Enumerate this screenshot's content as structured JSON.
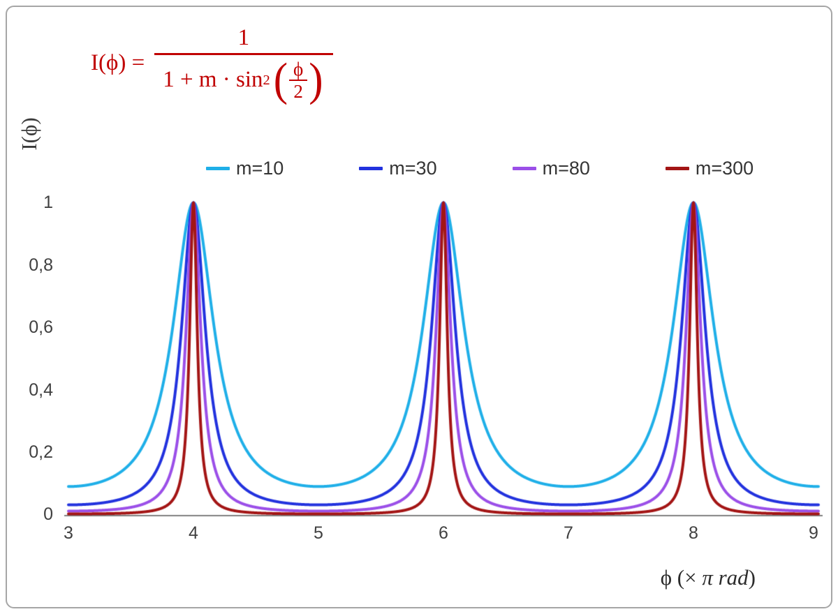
{
  "formula": {
    "plain": "I(ϕ) = 1 / (1 + m·sin²(ϕ/2))",
    "lhs": "I(ϕ) =",
    "numerator": "1",
    "den_prefix": "1 + m · sin",
    "den_sup": "2",
    "paren_open": "(",
    "paren_close": ")",
    "inner_num": "ϕ",
    "inner_den": "2",
    "color": "#c00000"
  },
  "axes": {
    "y_title": "I(ϕ)",
    "x_title_prefix": "ϕ  (× ",
    "x_title_italic": "π rad",
    "x_title_suffix": ")"
  },
  "chart_data": {
    "type": "line",
    "title": "",
    "function": "I(phi) = 1 / (1 + m * sin^2(phi/2)), phi plotted in units of pi rad",
    "xlabel": "ϕ (× π rad)",
    "ylabel": "I(ϕ)",
    "xlim": [
      3,
      9
    ],
    "ylim": [
      0,
      1.6
    ],
    "grid": false,
    "legend_position": "top-center",
    "x_ticks": [
      3,
      4,
      5,
      6,
      7,
      8,
      9
    ],
    "x_tick_labels": [
      "3",
      "4",
      "5",
      "6",
      "7",
      "8",
      "9"
    ],
    "y_ticks": [
      0,
      0.2,
      0.4,
      0.6,
      0.8,
      1
    ],
    "y_tick_labels": [
      "0",
      "0,2",
      "0,4",
      "0,6",
      "0,8",
      "1"
    ],
    "peaks_at_x": [
      4,
      6,
      8
    ],
    "peak_value": 1,
    "series": [
      {
        "name": "m=10",
        "m": 10,
        "color": "#1fafe8",
        "min_value": 0.0909
      },
      {
        "name": "m=30",
        "m": 30,
        "color": "#2232de",
        "min_value": 0.0323
      },
      {
        "name": "m=80",
        "m": 80,
        "color": "#9b4fe8",
        "min_value": 0.0123
      },
      {
        "name": "m=300",
        "m": 300,
        "color": "#a31515",
        "min_value": 0.0033
      }
    ],
    "samples_per_unit": 400,
    "axis_line_color": "#808080"
  }
}
